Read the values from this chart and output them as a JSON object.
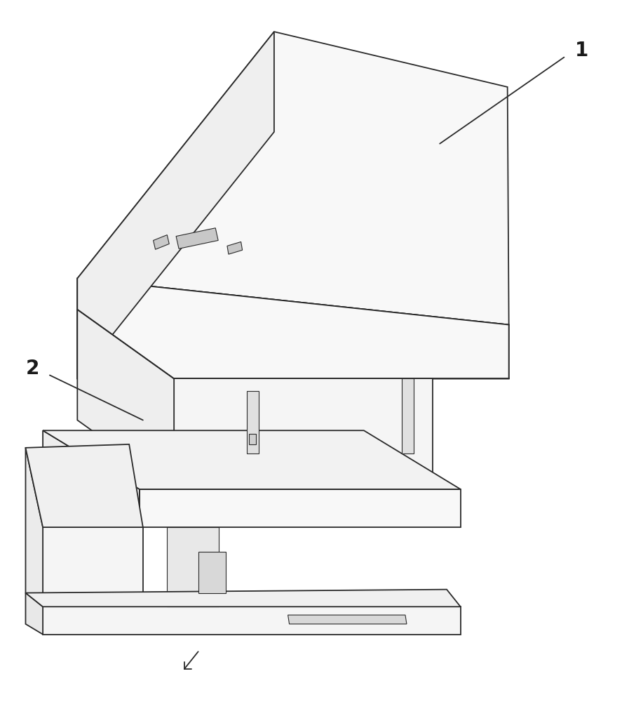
{
  "bg_color": "#ffffff",
  "lc": "#2a2a2a",
  "lw": 1.3,
  "lw_thin": 0.8,
  "label_1": "1",
  "label_2": "2",
  "font_size_label": 20
}
